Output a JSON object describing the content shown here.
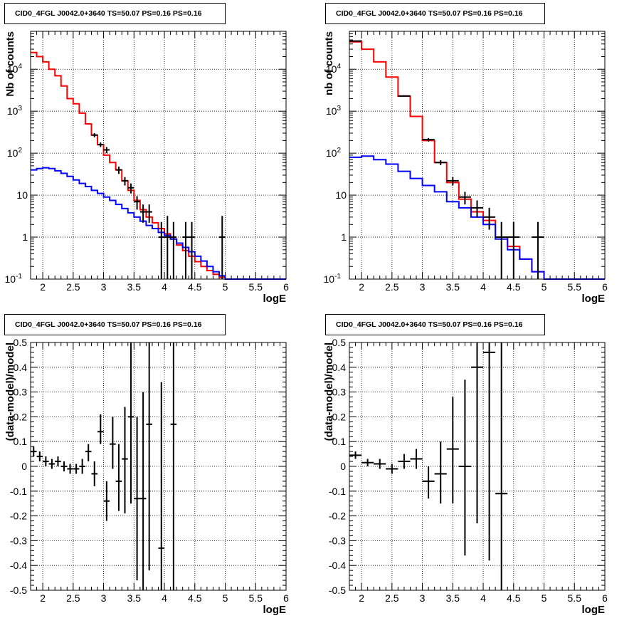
{
  "chart_data": [
    {
      "type": "line",
      "title": "CID0_4FGL J0042.0+3640 TS=50.07 PS=0.16 PS=0.16",
      "xlabel": "logE",
      "ylabel": "Nb of counts",
      "xlim": [
        1.8,
        6.0
      ],
      "ylim": [
        0.1,
        80000
      ],
      "yscale": "log",
      "grid": true,
      "x_ticks": [
        "2",
        "2.5",
        "3",
        "3.5",
        "4",
        "4.5",
        "5",
        "5.5",
        "6"
      ],
      "y_ticks": [
        "10^-1",
        "1",
        "10",
        "10^2",
        "10^3",
        "10^4"
      ],
      "bin_edges": [
        1.8,
        1.9,
        2.0,
        2.1,
        2.2,
        2.3,
        2.4,
        2.5,
        2.6,
        2.7,
        2.8,
        2.9,
        3.0,
        3.1,
        3.2,
        3.3,
        3.4,
        3.5,
        3.6,
        3.7,
        3.8,
        3.9,
        4.0,
        4.1,
        4.2,
        4.3,
        4.4,
        4.5,
        4.6,
        4.7,
        4.8,
        4.9,
        5.0,
        5.1,
        5.2,
        5.3,
        5.4,
        5.5,
        5.6,
        5.7,
        5.8,
        5.9,
        6.0
      ],
      "series": [
        {
          "color": "#ff0000",
          "style": "step",
          "values": [
            25000,
            20000,
            15000,
            10000,
            7000,
            4000,
            2000,
            1500,
            900,
            500,
            270,
            160,
            90,
            60,
            40,
            22,
            13,
            7.5,
            4.5,
            3.0,
            2.2,
            1.6,
            1.2,
            0.9,
            0.65,
            0.48,
            0.35,
            0.26,
            0.2,
            0.16,
            0.13,
            0.11,
            0.1,
            0.1,
            0.1,
            0.1,
            0.1,
            0.1,
            0.1,
            0.1,
            0.1,
            0.1
          ]
        },
        {
          "color": "#0000ff",
          "style": "step",
          "values": [
            40,
            43,
            45,
            43,
            38,
            33,
            28,
            23,
            19,
            16,
            13,
            11,
            9,
            7.5,
            6,
            4.8,
            3.8,
            3.0,
            2.4,
            1.9,
            1.6,
            1.3,
            1.1,
            0.9,
            0.72,
            0.57,
            0.45,
            0.35,
            0.27,
            0.2,
            0.15,
            0.12,
            0.1,
            0.1,
            0.1,
            0.1,
            0.1,
            0.1,
            0.1,
            0.1,
            0.1,
            0.1
          ]
        },
        {
          "color": "#000000",
          "style": "points",
          "points": [
            {
              "x": 2.85,
              "y": 270,
              "ylo": 240,
              "yhi": 300
            },
            {
              "x": 2.95,
              "y": 160,
              "ylo": 140,
              "yhi": 180
            },
            {
              "x": 3.05,
              "y": 120,
              "ylo": 100,
              "yhi": 140
            },
            {
              "x": 3.25,
              "y": 40,
              "ylo": 32,
              "yhi": 48
            },
            {
              "x": 3.35,
              "y": 22,
              "ylo": 17,
              "yhi": 27
            },
            {
              "x": 3.45,
              "y": 15,
              "ylo": 11,
              "yhi": 19
            },
            {
              "x": 3.55,
              "y": 7,
              "ylo": 4.5,
              "yhi": 9.5
            },
            {
              "x": 3.65,
              "y": 4,
              "ylo": 2.2,
              "yhi": 6
            },
            {
              "x": 3.75,
              "y": 4,
              "ylo": 2.2,
              "yhi": 6
            },
            {
              "x": 3.95,
              "y": 1,
              "ylo": 0.1,
              "yhi": 2.3
            },
            {
              "x": 4.05,
              "y": 1,
              "ylo": 0.1,
              "yhi": 3.2
            },
            {
              "x": 4.15,
              "y": 1,
              "ylo": 0.1,
              "yhi": 2.3
            },
            {
              "x": 4.35,
              "y": 1,
              "ylo": 0.1,
              "yhi": 2.3
            },
            {
              "x": 4.45,
              "y": 1,
              "ylo": 0.1,
              "yhi": 2.3
            },
            {
              "x": 4.95,
              "y": 1,
              "ylo": 0.1,
              "yhi": 3.2
            }
          ]
        }
      ]
    },
    {
      "type": "line",
      "title": "CID0_4FGL J0042.0+3640 TS=50.07 PS=0.16 PS=0.16",
      "xlabel": "logE",
      "ylabel": "nb of counts",
      "xlim": [
        1.8,
        6.0
      ],
      "ylim": [
        0.1,
        80000
      ],
      "yscale": "log",
      "grid": true,
      "x_ticks": [
        "2",
        "2.5",
        "3",
        "3.5",
        "4",
        "4.5",
        "5",
        "5.5",
        "6"
      ],
      "y_ticks": [
        "10^-1",
        "1",
        "10",
        "10^2",
        "10^3",
        "10^4"
      ],
      "bin_edges": [
        1.8,
        2.0,
        2.2,
        2.4,
        2.6,
        2.8,
        3.0,
        3.2,
        3.4,
        3.6,
        3.8,
        4.0,
        4.2,
        4.4,
        4.6,
        4.8,
        5.0,
        5.2,
        5.4,
        5.6,
        5.8,
        6.0
      ],
      "series": [
        {
          "color": "#ff0000",
          "style": "step",
          "values": [
            45000,
            30000,
            15000,
            6500,
            2300,
            750,
            200,
            60,
            20,
            8,
            4,
            2.5,
            1.0,
            0.6,
            0.3,
            0.15,
            0.1,
            0.1,
            0.1,
            0.1,
            0.1
          ]
        },
        {
          "color": "#0000ff",
          "style": "step",
          "values": [
            80,
            85,
            70,
            55,
            37,
            25,
            17,
            12,
            7,
            5,
            3,
            2.0,
            0.9,
            0.5,
            0.3,
            0.15,
            0.1,
            0.1,
            0.1,
            0.1,
            0.1
          ]
        },
        {
          "color": "#000000",
          "style": "points",
          "points": [
            {
              "x": 1.9,
              "y": 47000,
              "ylo": 46000,
              "yhi": 48000
            },
            {
              "x": 2.7,
              "y": 2300,
              "ylo": 2200,
              "yhi": 2400
            },
            {
              "x": 3.1,
              "y": 210,
              "ylo": 190,
              "yhi": 230
            },
            {
              "x": 3.3,
              "y": 60,
              "ylo": 52,
              "yhi": 68
            },
            {
              "x": 3.5,
              "y": 22,
              "ylo": 17,
              "yhi": 27
            },
            {
              "x": 3.7,
              "y": 9,
              "ylo": 6,
              "yhi": 12
            },
            {
              "x": 3.9,
              "y": 5,
              "ylo": 3,
              "yhi": 7.5
            },
            {
              "x": 4.1,
              "y": 3,
              "ylo": 1.5,
              "yhi": 5
            },
            {
              "x": 4.3,
              "y": 1,
              "ylo": 0.1,
              "yhi": 2.3
            },
            {
              "x": 4.5,
              "y": 1,
              "ylo": 0.1,
              "yhi": 2.3
            },
            {
              "x": 4.9,
              "y": 1,
              "ylo": 0.1,
              "yhi": 2.3
            }
          ]
        }
      ]
    },
    {
      "type": "scatter",
      "title": "CID0_4FGL J0042.0+3640 TS=50.07 PS=0.16 PS=0.16",
      "xlabel": "logE",
      "ylabel": "(data-model)/model",
      "xlim": [
        1.8,
        6.0
      ],
      "ylim": [
        -0.5,
        0.5
      ],
      "grid": true,
      "x_ticks": [
        "2",
        "2.5",
        "3",
        "3.5",
        "4",
        "4.5",
        "5",
        "5.5",
        "6"
      ],
      "y_ticks": [
        "-0.5",
        "-0.4",
        "-0.3",
        "-0.2",
        "-0.1",
        "0",
        "0.1",
        "0.2",
        "0.3",
        "0.4",
        "0.5"
      ],
      "xerr": 0.05,
      "series": [
        {
          "color": "#000000",
          "style": "points",
          "points": [
            {
              "x": 1.85,
              "y": 0.06,
              "ylo": 0.04,
              "yhi": 0.08
            },
            {
              "x": 1.95,
              "y": 0.04,
              "ylo": 0.02,
              "yhi": 0.06
            },
            {
              "x": 2.05,
              "y": 0.02,
              "ylo": 0.0,
              "yhi": 0.04
            },
            {
              "x": 2.15,
              "y": 0.01,
              "ylo": -0.01,
              "yhi": 0.03
            },
            {
              "x": 2.25,
              "y": 0.02,
              "ylo": 0.0,
              "yhi": 0.04
            },
            {
              "x": 2.35,
              "y": 0.0,
              "ylo": -0.02,
              "yhi": 0.02
            },
            {
              "x": 2.45,
              "y": -0.01,
              "ylo": -0.03,
              "yhi": 0.01
            },
            {
              "x": 2.55,
              "y": -0.01,
              "ylo": -0.03,
              "yhi": 0.01
            },
            {
              "x": 2.65,
              "y": 0.0,
              "ylo": -0.03,
              "yhi": 0.03
            },
            {
              "x": 2.75,
              "y": 0.06,
              "ylo": 0.02,
              "yhi": 0.09
            },
            {
              "x": 2.85,
              "y": -0.03,
              "ylo": -0.08,
              "yhi": 0.02
            },
            {
              "x": 2.95,
              "y": 0.14,
              "ylo": 0.09,
              "yhi": 0.21
            },
            {
              "x": 3.05,
              "y": -0.14,
              "ylo": -0.22,
              "yhi": -0.06
            },
            {
              "x": 3.15,
              "y": 0.09,
              "ylo": -0.01,
              "yhi": 0.2
            },
            {
              "x": 3.25,
              "y": -0.06,
              "ylo": -0.18,
              "yhi": 0.09
            },
            {
              "x": 3.35,
              "y": 0.03,
              "ylo": -0.19,
              "yhi": 0.24
            },
            {
              "x": 3.45,
              "y": 0.2,
              "ylo": -0.15,
              "yhi": 0.5
            },
            {
              "x": 3.55,
              "y": -0.13,
              "ylo": -0.46,
              "yhi": 0.2
            },
            {
              "x": 3.65,
              "y": -0.13,
              "ylo": -0.5,
              "yhi": 0.3
            },
            {
              "x": 3.75,
              "y": 0.17,
              "ylo": -0.42,
              "yhi": 0.5
            },
            {
              "x": 3.95,
              "y": -0.33,
              "ylo": -0.5,
              "yhi": 0.34
            },
            {
              "x": 4.15,
              "y": 0.17,
              "ylo": -0.5,
              "yhi": 0.5
            }
          ]
        }
      ]
    },
    {
      "type": "scatter",
      "title": "CID0_4FGL J0042.0+3640 TS=50.07 PS=0.16 PS=0.16",
      "xlabel": "logE",
      "ylabel": "(data-model)/model",
      "xlim": [
        1.8,
        6.0
      ],
      "ylim": [
        -0.5,
        0.5
      ],
      "grid": true,
      "x_ticks": [
        "2",
        "2.5",
        "3",
        "3.5",
        "4",
        "4.5",
        "5",
        "5.5",
        "6"
      ],
      "y_ticks": [
        "-0.5",
        "-0.4",
        "-0.3",
        "-0.2",
        "-0.1",
        "0",
        "0.1",
        "0.2",
        "0.3",
        "0.4",
        "0.5"
      ],
      "xerr": 0.1,
      "series": [
        {
          "color": "#000000",
          "style": "points",
          "points": [
            {
              "x": 1.9,
              "y": 0.045,
              "ylo": 0.03,
              "yhi": 0.06
            },
            {
              "x": 2.1,
              "y": 0.015,
              "ylo": 0.0,
              "yhi": 0.03
            },
            {
              "x": 2.3,
              "y": 0.01,
              "ylo": -0.01,
              "yhi": 0.03
            },
            {
              "x": 2.5,
              "y": -0.01,
              "ylo": -0.03,
              "yhi": 0.01
            },
            {
              "x": 2.7,
              "y": 0.02,
              "ylo": -0.01,
              "yhi": 0.05
            },
            {
              "x": 2.9,
              "y": 0.03,
              "ylo": -0.01,
              "yhi": 0.07
            },
            {
              "x": 3.1,
              "y": -0.06,
              "ylo": -0.13,
              "yhi": 0.0
            },
            {
              "x": 3.3,
              "y": -0.03,
              "ylo": -0.15,
              "yhi": 0.1
            },
            {
              "x": 3.5,
              "y": 0.07,
              "ylo": -0.15,
              "yhi": 0.28
            },
            {
              "x": 3.7,
              "y": 0.0,
              "ylo": -0.36,
              "yhi": 0.35
            },
            {
              "x": 3.9,
              "y": 0.4,
              "ylo": -0.23,
              "yhi": 0.5
            },
            {
              "x": 4.1,
              "y": 0.46,
              "ylo": -0.38,
              "yhi": 0.5
            },
            {
              "x": 4.3,
              "y": -0.11,
              "ylo": -0.5,
              "yhi": 0.5
            }
          ]
        }
      ]
    }
  ]
}
